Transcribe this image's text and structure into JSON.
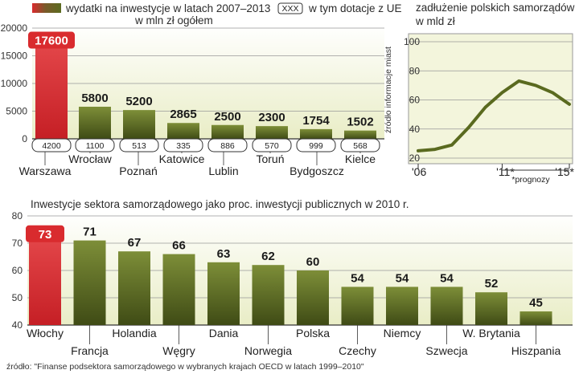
{
  "colors": {
    "accent": "#d92b2e",
    "bar_dark": "#4f5e1e",
    "bar_light": "#8a9a43",
    "panel_bg": "#f2f4dc",
    "line": "#5a6a1f"
  },
  "chart_data": [
    {
      "type": "bar",
      "title": "wydatki na inwestycje w latach 2007–2013",
      "subtitle": "w mln zł ogółem",
      "legend_ue": "w tym dotacje z UE",
      "legend_ue_box": "XXX",
      "side_note": "źródło informacje miast",
      "categories": [
        "Warszawa",
        "Wrocław",
        "Poznań",
        "Katowice",
        "Lublin",
        "Toruń",
        "Bydgoszcz",
        "Kielce"
      ],
      "values": [
        17600,
        5800,
        5200,
        2865,
        2500,
        2300,
        1754,
        1502
      ],
      "value_labels": [
        "17600",
        "5800",
        "5200",
        "2865",
        "2500",
        "2300",
        "1754",
        "1502"
      ],
      "ue_values": [
        "4200",
        "1100",
        "513",
        "335",
        "886",
        "570",
        "999",
        "568"
      ],
      "yticks": [
        "0",
        "5000",
        "10000",
        "15000",
        "20000"
      ],
      "ylim": [
        0,
        20000
      ]
    },
    {
      "type": "line",
      "title_line1": "zadłużenie polskich samorządów",
      "title_line2": "w mld zł",
      "x": [
        2006,
        2007,
        2008,
        2009,
        2010,
        2011,
        2012,
        2013,
        2014,
        2015
      ],
      "values": [
        25,
        26,
        29,
        41,
        55,
        65,
        73,
        70,
        65,
        57
      ],
      "xtick_labels": [
        "'06",
        "'11*",
        "'15*"
      ],
      "forecast_label": "*prognozy",
      "yticks": [
        "20",
        "40",
        "60",
        "80",
        "100"
      ],
      "ylim": [
        20,
        100
      ]
    },
    {
      "type": "bar",
      "title": "Inwestycje sektora samorządowego jako proc. inwestycji publicznych w 2010 r.",
      "categories": [
        "Włochy",
        "Francja",
        "Holandia",
        "Węgry",
        "Dania",
        "Norwegia",
        "Polska",
        "Czechy",
        "Niemcy",
        "Szwecja",
        "W. Brytania",
        "Hiszpania"
      ],
      "values": [
        73,
        71,
        67,
        66,
        63,
        62,
        60,
        54,
        54,
        54,
        52,
        45
      ],
      "value_labels": [
        "73",
        "71",
        "67",
        "66",
        "63",
        "62",
        "60",
        "54",
        "54",
        "54",
        "52",
        "45"
      ],
      "yticks": [
        "40",
        "50",
        "60",
        "70",
        "80"
      ],
      "ylim": [
        40,
        80
      ]
    }
  ],
  "source": "źródło: \"Finanse podsektora samorządowego w wybranych krajach OECD w latach 1999–2010\""
}
